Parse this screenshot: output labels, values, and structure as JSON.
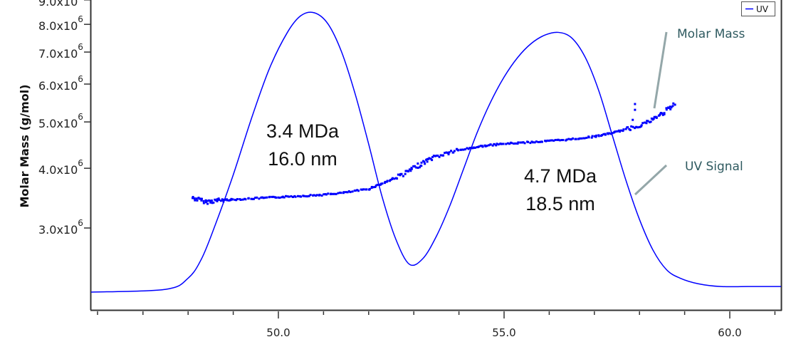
{
  "chart_data": {
    "type": "line",
    "title": "",
    "xlabel": "",
    "ylabel": "Molar Mass (g/mol)",
    "x_range": [
      46.2,
      61.2
    ],
    "y_scale": "log",
    "y_range_visible": [
      2300000.0,
      9000000.0
    ],
    "x_ticks_major": [
      "50.0",
      "55.0",
      "60.0"
    ],
    "x_ticks_minor_step": 1.0,
    "y_ticks": [
      {
        "value": 9000000.0,
        "label": "9.0x10",
        "exp": "6"
      },
      {
        "value": 8000000.0,
        "label": "8.0x10",
        "exp": "6"
      },
      {
        "value": 7000000.0,
        "label": "7.0x10",
        "exp": "6"
      },
      {
        "value": 6000000.0,
        "label": "6.0x10",
        "exp": "6"
      },
      {
        "value": 5000000.0,
        "label": "5.0x10",
        "exp": "6"
      },
      {
        "value": 4000000.0,
        "label": "4.0x10",
        "exp": "6"
      },
      {
        "value": 3000000.0,
        "label": "3.0x10",
        "exp": "6"
      }
    ],
    "legend": {
      "position": "top-right",
      "entries": [
        {
          "label": "UV",
          "color": "#0000ff"
        }
      ]
    },
    "grid": false,
    "series": [
      {
        "name": "UV",
        "kind": "line",
        "color": "#0000ff",
        "y_units": "relative (0-1)",
        "x": [
          46.2,
          47.5,
          48.0,
          48.3,
          48.6,
          49.0,
          49.4,
          49.8,
          50.2,
          50.5,
          50.8,
          51.1,
          51.4,
          51.7,
          52.0,
          52.3,
          52.6,
          52.9,
          53.2,
          53.5,
          53.8,
          54.1,
          54.4,
          54.7,
          55.0,
          55.3,
          55.6,
          55.9,
          56.2,
          56.5,
          56.8,
          57.1,
          57.4,
          57.7,
          58.0,
          58.3,
          58.6,
          58.9,
          59.3,
          59.8,
          60.4,
          61.2
        ],
        "y": [
          0.0,
          0.01,
          0.05,
          0.12,
          0.24,
          0.42,
          0.62,
          0.8,
          0.93,
          0.99,
          1.0,
          0.96,
          0.86,
          0.71,
          0.53,
          0.34,
          0.19,
          0.1,
          0.12,
          0.2,
          0.31,
          0.44,
          0.57,
          0.68,
          0.77,
          0.84,
          0.89,
          0.92,
          0.93,
          0.91,
          0.84,
          0.72,
          0.56,
          0.4,
          0.26,
          0.15,
          0.08,
          0.05,
          0.03,
          0.02,
          0.02,
          0.02
        ]
      },
      {
        "name": "Molar Mass",
        "kind": "scatter",
        "color": "#0000ff",
        "x": [
          48.1,
          48.4,
          48.7,
          49.0,
          49.5,
          50.0,
          50.5,
          51.0,
          51.5,
          52.0,
          52.4,
          52.8,
          53.1,
          53.4,
          53.8,
          54.2,
          54.6,
          55.0,
          55.5,
          56.0,
          56.5,
          57.0,
          57.4,
          57.8,
          58.2,
          58.5,
          58.8
        ],
        "y": [
          3470000.0,
          3400000.0,
          3430000.0,
          3440000.0,
          3460000.0,
          3480000.0,
          3500000.0,
          3520000.0,
          3560000.0,
          3620000.0,
          3750000.0,
          3900000.0,
          4050000.0,
          4200000.0,
          4320000.0,
          4400000.0,
          4460000.0,
          4500000.0,
          4530000.0,
          4560000.0,
          4600000.0,
          4660000.0,
          4740000.0,
          4850000.0,
          5000000.0,
          5200000.0,
          5450000.0
        ]
      }
    ],
    "annotations": [
      {
        "text": "3.4 MDa",
        "line2": "16.0 nm",
        "peak": 1
      },
      {
        "text": "4.7 MDa",
        "line2": "18.5 nm",
        "peak": 2
      },
      {
        "text": "Molar Mass",
        "type": "callout"
      },
      {
        "text": "UV Signal",
        "type": "callout"
      }
    ]
  },
  "labels": {
    "ylabel": "Molar Mass (g/mol)",
    "legend_uv": "UV",
    "peak1_mass": "3.4 MDa",
    "peak1_size": "16.0 nm",
    "peak2_mass": "4.7 MDa",
    "peak2_size": "18.5 nm",
    "callout_molar": "Molar Mass",
    "callout_uv": "UV Signal",
    "x50": "50.0",
    "x55": "55.0",
    "x60": "60.0"
  },
  "colors": {
    "series": "#0000ff",
    "axis": "#333333",
    "callout_text": "#2f5a60",
    "callout_line": "#94a7a9"
  }
}
